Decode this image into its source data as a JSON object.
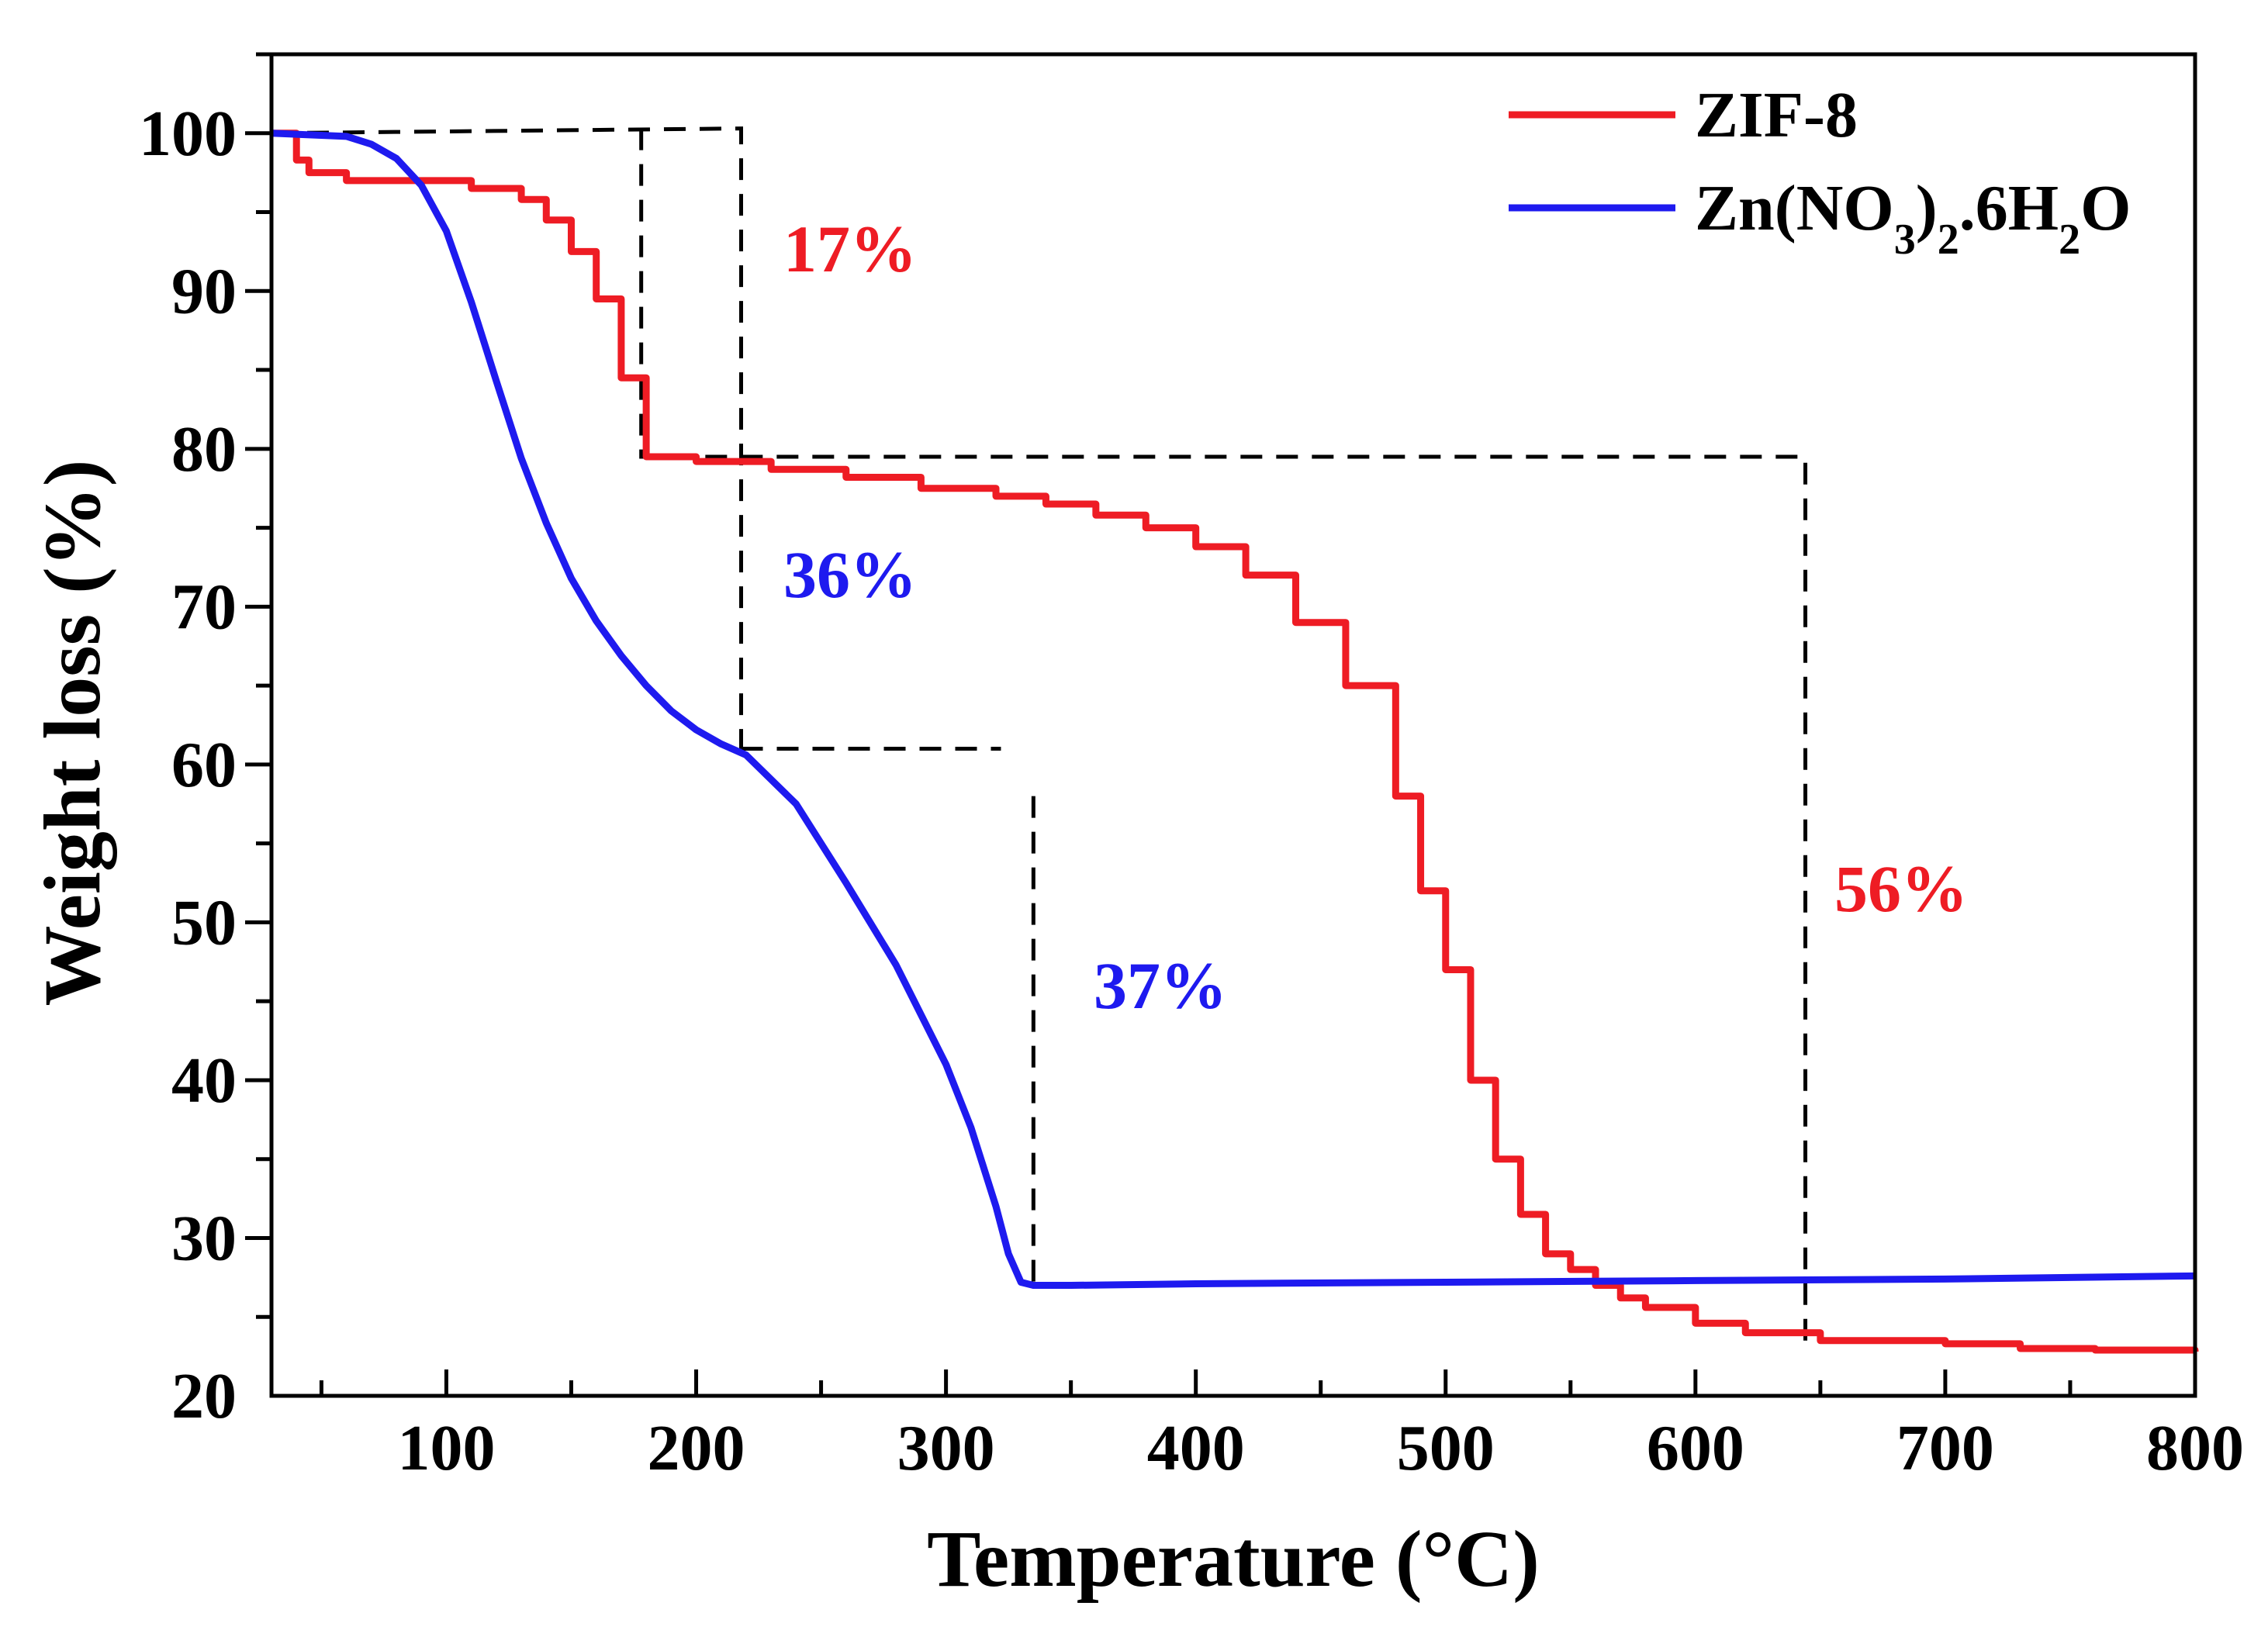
{
  "chart_data": {
    "type": "line",
    "xlabel": "Temperature (°C)",
    "ylabel": "Weight loss (%)",
    "xlim": [
      30,
      800
    ],
    "ylim": [
      20,
      105
    ],
    "x_ticks": [
      100,
      200,
      300,
      400,
      500,
      600,
      700,
      800
    ],
    "y_ticks": [
      20,
      30,
      40,
      50,
      60,
      70,
      80,
      90,
      100
    ],
    "grid": false,
    "legend_position": "top-right",
    "series": [
      {
        "name": "ZIF-8",
        "color": "#ee1c24",
        "x": [
          30,
          40,
          45,
          60,
          90,
          110,
          130,
          140,
          150,
          160,
          170,
          180,
          200,
          230,
          260,
          290,
          320,
          340,
          360,
          380,
          400,
          420,
          440,
          460,
          480,
          490,
          500,
          510,
          520,
          530,
          540,
          550,
          560,
          570,
          580,
          600,
          620,
          650,
          700,
          730,
          760,
          800
        ],
        "y": [
          100,
          98.3,
          97.5,
          97,
          97,
          96.5,
          95.8,
          94.5,
          92.5,
          89.5,
          84.5,
          79.5,
          79.2,
          78.7,
          78.2,
          77.5,
          77,
          76.5,
          75.8,
          75,
          73.8,
          72,
          69,
          65,
          58,
          52,
          47,
          40,
          35,
          31.5,
          29,
          28,
          27,
          26.2,
          25.6,
          24.6,
          24,
          23.5,
          23.3,
          23,
          22.9,
          22.8
        ]
      },
      {
        "name": "Zn(NO3)2.6H2O",
        "color": "#1e1aef",
        "x": [
          30,
          60,
          70,
          80,
          90,
          100,
          110,
          120,
          130,
          140,
          150,
          160,
          170,
          180,
          190,
          200,
          210,
          220,
          240,
          260,
          280,
          300,
          310,
          320,
          325,
          330,
          335,
          350,
          400,
          500,
          600,
          700,
          800
        ],
        "y": [
          100,
          99.8,
          99.3,
          98.4,
          96.7,
          93.8,
          89.3,
          84.3,
          79.4,
          75.3,
          71.8,
          69.1,
          66.9,
          65,
          63.4,
          62.2,
          61.3,
          60.6,
          57.5,
          52.5,
          47.3,
          41,
          37,
          32,
          29,
          27.2,
          27,
          27,
          27.1,
          27.2,
          27.3,
          27.4,
          27.6
        ]
      }
    ],
    "annotations": [
      {
        "text": "17%",
        "color": "#ee1c24"
      },
      {
        "text": "36%",
        "color": "#1e1aef"
      },
      {
        "text": "37%",
        "color": "#1e1aef"
      },
      {
        "text": "56%",
        "color": "#ee1c24"
      }
    ],
    "guide_lines": [
      {
        "points": [
          [
            30,
            100
          ],
          [
            218,
            100.3
          ],
          [
            218,
            61
          ]
        ]
      },
      {
        "points": [
          [
            178,
            100.3
          ],
          [
            178,
            79.5
          ],
          [
            644,
            79.5
          ],
          [
            644,
            23
          ]
        ]
      },
      {
        "points": [
          [
            218,
            61
          ],
          [
            322,
            61
          ]
        ]
      },
      {
        "points": [
          [
            335,
            58
          ],
          [
            335,
            27
          ]
        ]
      }
    ],
    "legend_labels": [
      "ZIF-8",
      "Zn(NO3)2.6H2O"
    ]
  }
}
